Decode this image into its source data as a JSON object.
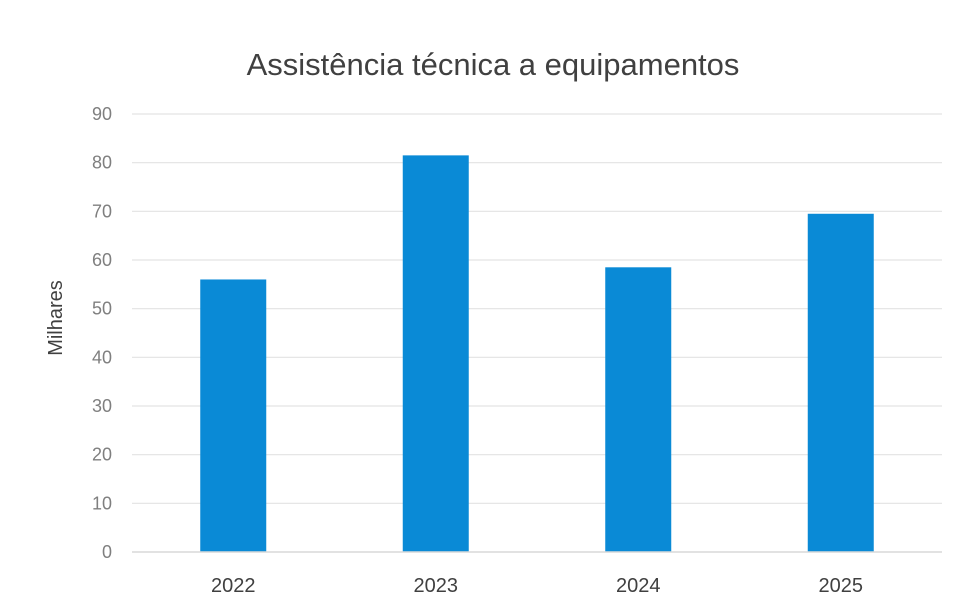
{
  "chart_data": {
    "type": "bar",
    "title": "Assistência técnica a equipamentos",
    "ylabel": "Milhares",
    "xlabel": "",
    "categories": [
      "2022",
      "2023",
      "2024",
      "2025"
    ],
    "values": [
      56,
      81.5,
      58.5,
      69.5
    ],
    "ylim": [
      0,
      90
    ],
    "yticks": [
      "0",
      "10",
      "20",
      "30",
      "40",
      "50",
      "60",
      "70",
      "80",
      "90"
    ],
    "grid": true,
    "legend": "none",
    "colors": {
      "bar": "#0a8ad6",
      "grid": "#e3e3e3",
      "axis": "#d9d9d9"
    }
  }
}
